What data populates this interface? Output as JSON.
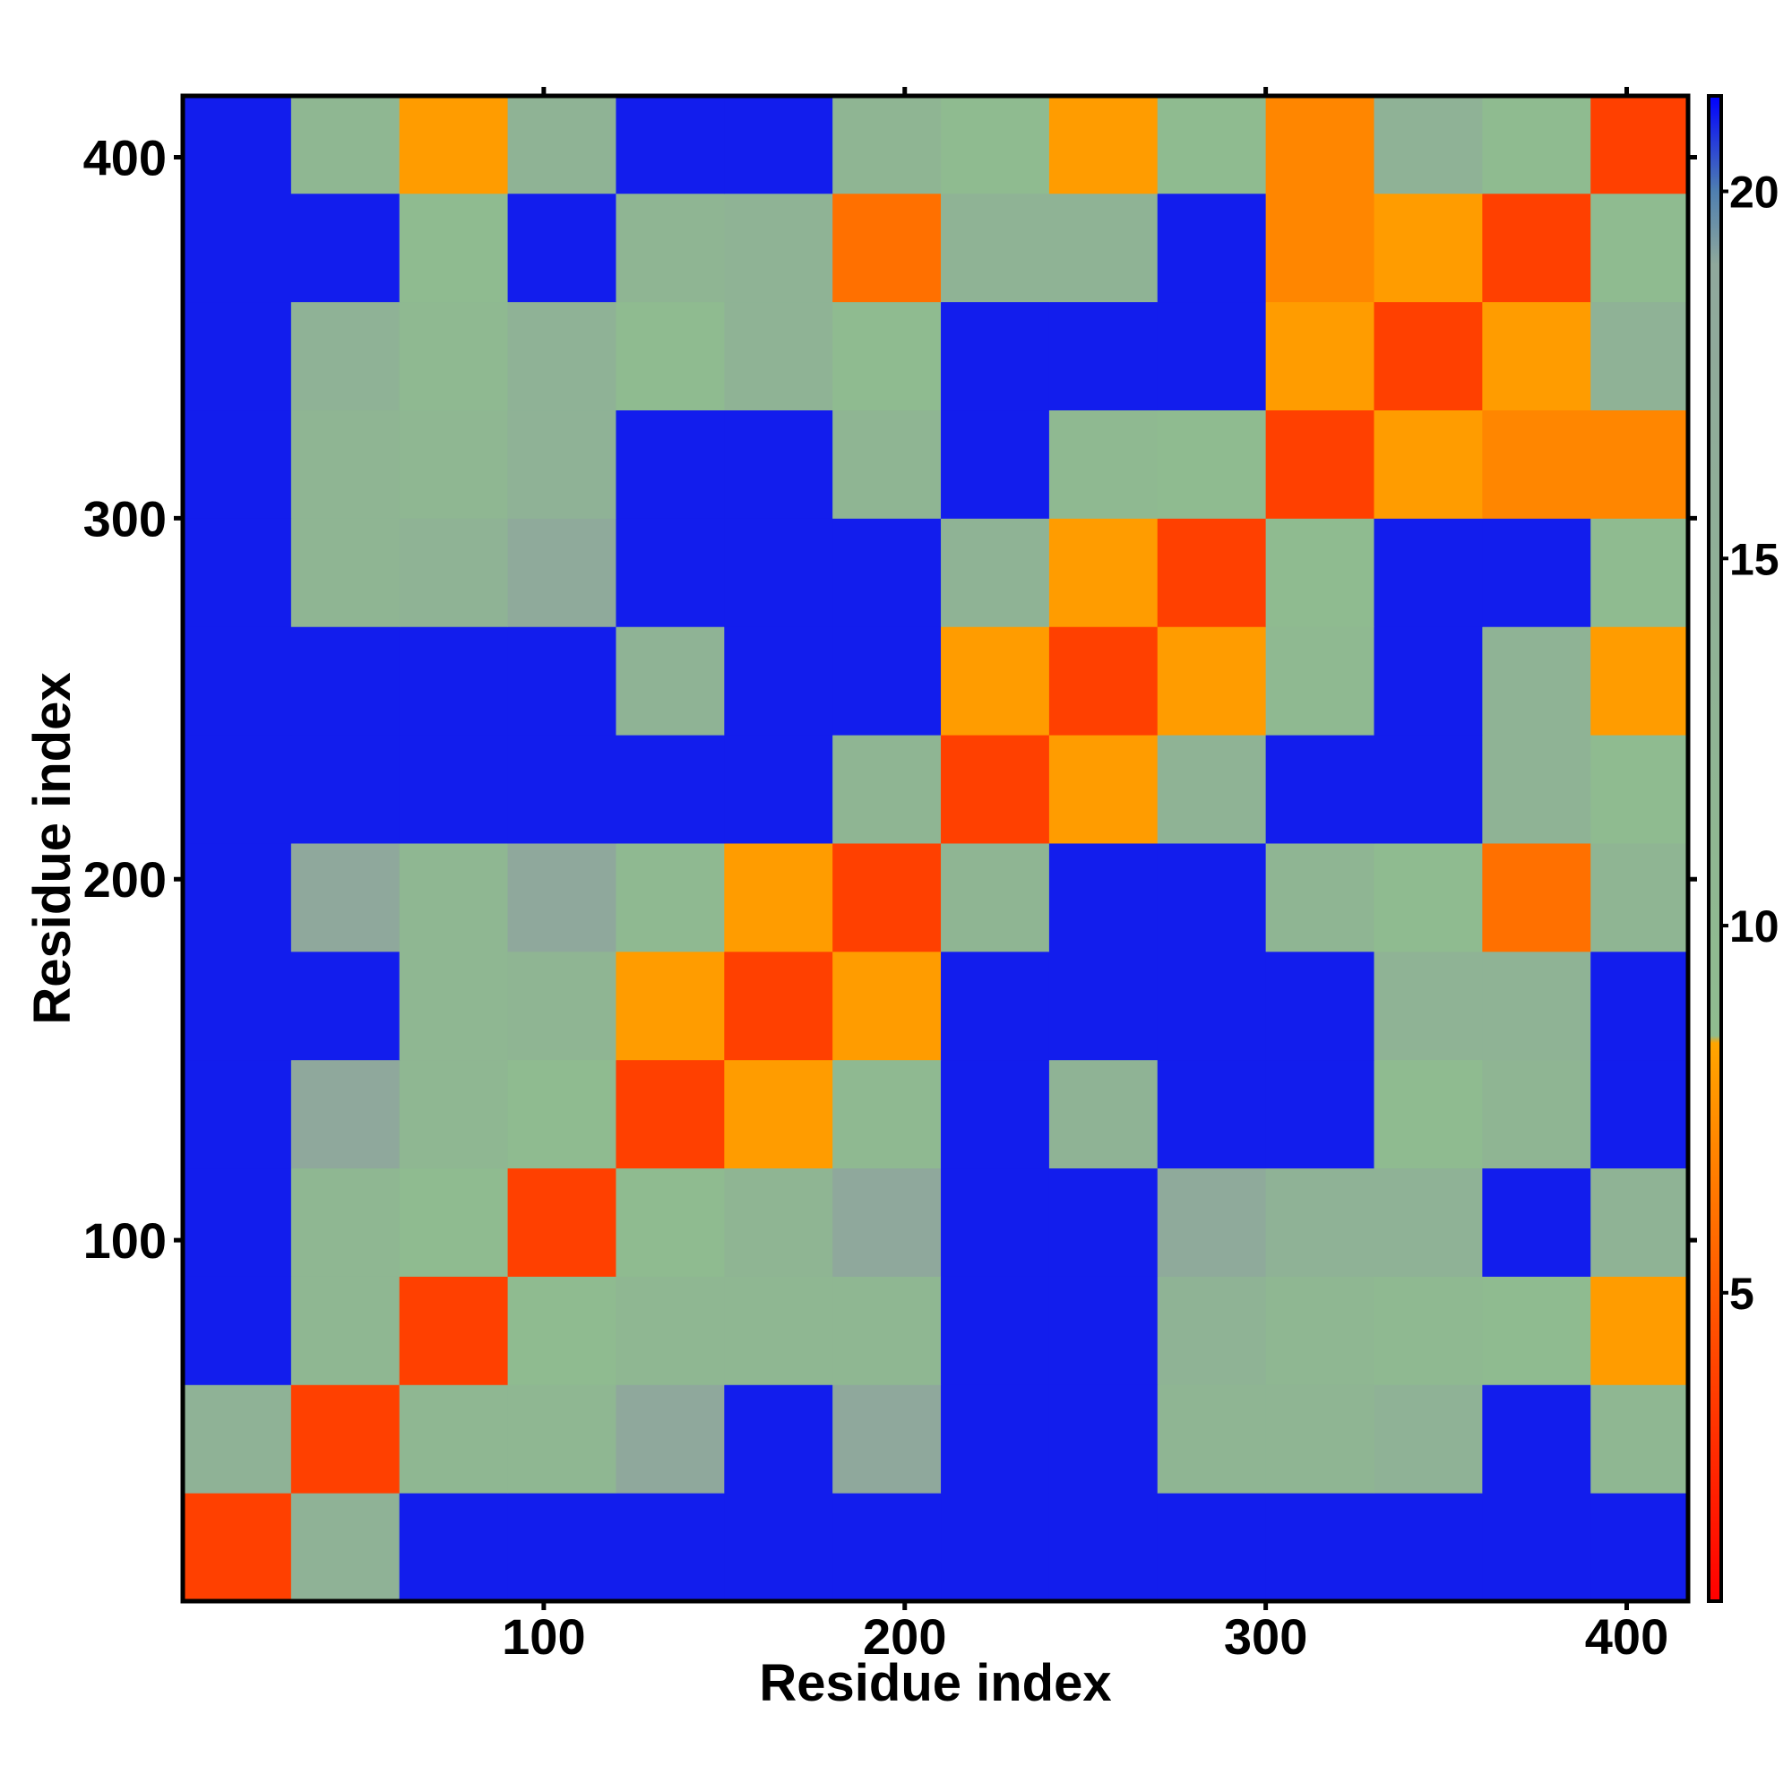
{
  "chart_data": {
    "type": "heatmap",
    "x_label": "Residue index",
    "y_label": "Residue index",
    "x_bins": [
      0,
      30,
      60,
      90,
      120,
      150,
      180,
      210,
      240,
      270,
      300,
      330,
      360,
      390,
      417
    ],
    "y_bins": [
      0,
      30,
      60,
      90,
      120,
      150,
      180,
      210,
      240,
      270,
      300,
      330,
      360,
      390,
      417
    ],
    "z": [
      [
        3.8,
        14,
        21,
        21,
        21,
        21,
        21,
        21,
        21,
        21,
        21,
        21,
        21,
        21
      ],
      [
        14,
        3.8,
        11,
        11,
        19,
        21,
        19,
        21,
        21,
        12,
        12,
        14,
        21,
        11
      ],
      [
        21,
        11,
        3.8,
        9,
        11,
        11,
        11,
        21,
        21,
        13,
        11,
        10,
        9,
        8
      ],
      [
        21,
        11,
        9,
        3.8,
        9,
        12,
        19,
        21,
        21,
        18,
        14,
        14,
        21,
        13
      ],
      [
        21,
        19,
        11,
        9,
        3.8,
        8,
        10,
        21,
        13,
        21,
        21,
        9,
        12,
        21
      ],
      [
        21,
        21,
        11,
        12,
        8,
        3.8,
        8,
        21,
        21,
        21,
        21,
        13,
        13,
        21
      ],
      [
        21,
        19,
        11,
        19,
        10,
        8,
        3.8,
        12,
        21,
        21,
        12,
        9,
        6,
        12
      ],
      [
        21,
        21,
        21,
        21,
        21,
        21,
        12,
        3.8,
        8,
        13,
        21,
        21,
        13,
        9
      ],
      [
        21,
        21,
        21,
        21,
        13,
        21,
        21,
        8,
        3.8,
        8,
        10,
        21,
        13,
        8
      ],
      [
        21,
        12,
        13,
        18,
        21,
        21,
        21,
        13,
        8,
        3.8,
        9,
        21,
        21,
        9
      ],
      [
        21,
        12,
        11,
        14,
        21,
        21,
        12,
        21,
        10,
        9,
        3.8,
        8,
        7,
        7
      ],
      [
        21,
        14,
        10,
        14,
        9,
        13,
        9,
        21,
        21,
        21,
        8,
        3.8,
        8,
        14
      ],
      [
        21,
        21,
        9,
        21,
        12,
        13,
        6,
        13,
        13,
        21,
        7,
        8,
        3.8,
        9
      ],
      [
        21,
        11,
        8,
        13,
        21,
        21,
        12,
        9,
        8,
        9,
        7,
        14,
        9,
        3.8
      ]
    ],
    "xlim": [
      0,
      417
    ],
    "ylim": [
      0,
      417
    ],
    "xticks": [
      100,
      200,
      300,
      400
    ],
    "yticks": [
      100,
      200,
      300,
      400
    ],
    "colorbar_lim": [
      0.8,
      21.3
    ],
    "colorbar_ticks": [
      5,
      10,
      15,
      20
    ],
    "colorscale": [
      {
        "value": 0.8,
        "color": "#ff0000"
      },
      {
        "value": 5,
        "color": "#ff5a00"
      },
      {
        "value": 8.4,
        "color": "#ffa500"
      },
      {
        "value": 8.5,
        "color": "#8fbc8f"
      },
      {
        "value": 19,
        "color": "#8fa89c"
      },
      {
        "value": 20,
        "color": "#4f7fb0"
      },
      {
        "value": 21.3,
        "color": "#0000ff"
      }
    ]
  }
}
